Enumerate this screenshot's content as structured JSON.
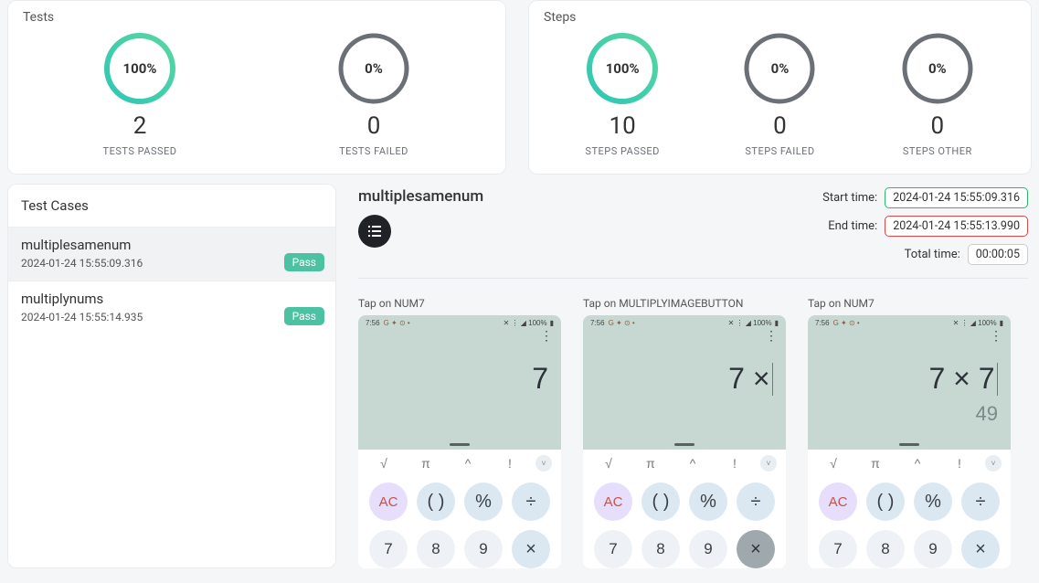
{
  "summary": {
    "tests": {
      "title": "Tests",
      "stats": [
        {
          "key": "passed",
          "percent": "100%",
          "progress": 1.0,
          "count": "2",
          "label": "TESTS PASSED"
        },
        {
          "key": "failed",
          "percent": "0%",
          "progress": 0.0,
          "count": "0",
          "label": "TESTS FAILED"
        }
      ]
    },
    "steps": {
      "title": "Steps",
      "stats": [
        {
          "key": "passed",
          "percent": "100%",
          "progress": 1.0,
          "count": "10",
          "label": "STEPS PASSED"
        },
        {
          "key": "failed",
          "percent": "0%",
          "progress": 0.0,
          "count": "0",
          "label": "STEPS FAILED"
        },
        {
          "key": "other",
          "percent": "0%",
          "progress": 0.0,
          "count": "0",
          "label": "STEPS OTHER"
        }
      ]
    }
  },
  "ring": {
    "radius": 36,
    "track_color": "#6b6f76",
    "progress_gradient": [
      "#2ec7b6",
      "#59d6a0"
    ]
  },
  "testcases": {
    "title": "Test Cases",
    "items": [
      {
        "name": "multiplesamenum",
        "timestamp": "2024-01-24 15:55:09.316",
        "status": "Pass",
        "status_color": "#4cc2a3",
        "selected": true
      },
      {
        "name": "multiplynums",
        "timestamp": "2024-01-24 15:55:14.935",
        "status": "Pass",
        "status_color": "#4cc2a3",
        "selected": false
      }
    ]
  },
  "detail": {
    "title": "multiplesamenum",
    "icon": "list-icon",
    "meta": {
      "start": {
        "label": "Start time:",
        "value": "2024-01-24 15:55:09.316",
        "pill": "green"
      },
      "end": {
        "label": "End time:",
        "value": "2024-01-24 15:55:13.990",
        "pill": "red"
      },
      "total": {
        "label": "Total time:",
        "value": "00:00:05",
        "pill": "gray"
      }
    }
  },
  "steps_detail": [
    {
      "label": "Tap on NUM7",
      "phone": {
        "statusbar": {
          "time": "7:56",
          "icons_left": "G ✦ ⊙ •",
          "icons_right": "✕ ⋮ ◢ 100%",
          "battery": "▮"
        },
        "expression": "7",
        "show_cursor": false,
        "result": "",
        "highlight_multiply": false,
        "display_bg": "#c7d8d3",
        "sci_row": [
          "√",
          "π",
          "^",
          "!"
        ],
        "keys": [
          {
            "t": "AC",
            "cls": "ac"
          },
          {
            "t": "( )",
            "cls": "op"
          },
          {
            "t": "%",
            "cls": "op"
          },
          {
            "t": "÷",
            "cls": "op"
          },
          {
            "t": "7",
            "cls": "num"
          },
          {
            "t": "8",
            "cls": "num"
          },
          {
            "t": "9",
            "cls": "num"
          },
          {
            "t": "×",
            "cls": "op"
          }
        ]
      }
    },
    {
      "label": "Tap on MULTIPLYIMAGEBUTTON",
      "phone": {
        "statusbar": {
          "time": "7:56",
          "icons_left": "G ✦ ⊙ •",
          "icons_right": "✕ ⋮ ◢ 100%",
          "battery": "▮"
        },
        "expression": "7 ×",
        "show_cursor": true,
        "result": "",
        "highlight_multiply": true,
        "display_bg": "#c7d8d3",
        "sci_row": [
          "√",
          "π",
          "^",
          "!"
        ],
        "keys": [
          {
            "t": "AC",
            "cls": "ac"
          },
          {
            "t": "( )",
            "cls": "op"
          },
          {
            "t": "%",
            "cls": "op"
          },
          {
            "t": "÷",
            "cls": "op"
          },
          {
            "t": "7",
            "cls": "num"
          },
          {
            "t": "8",
            "cls": "num"
          },
          {
            "t": "9",
            "cls": "num"
          },
          {
            "t": "×",
            "cls": "op"
          }
        ]
      }
    },
    {
      "label": "Tap on NUM7",
      "phone": {
        "statusbar": {
          "time": "7:56",
          "icons_left": "G ✦ ⊙ •",
          "icons_right": "✕ ⋮ ◢ 100%",
          "battery": "▮"
        },
        "expression": "7 × 7",
        "show_cursor": true,
        "result": "49",
        "highlight_multiply": false,
        "display_bg": "#c7d8d3",
        "sci_row": [
          "√",
          "π",
          "^",
          "!"
        ],
        "keys": [
          {
            "t": "AC",
            "cls": "ac"
          },
          {
            "t": "( )",
            "cls": "op"
          },
          {
            "t": "%",
            "cls": "op"
          },
          {
            "t": "÷",
            "cls": "op"
          },
          {
            "t": "7",
            "cls": "num"
          },
          {
            "t": "8",
            "cls": "num"
          },
          {
            "t": "9",
            "cls": "num"
          },
          {
            "t": "×",
            "cls": "op"
          }
        ]
      }
    }
  ]
}
